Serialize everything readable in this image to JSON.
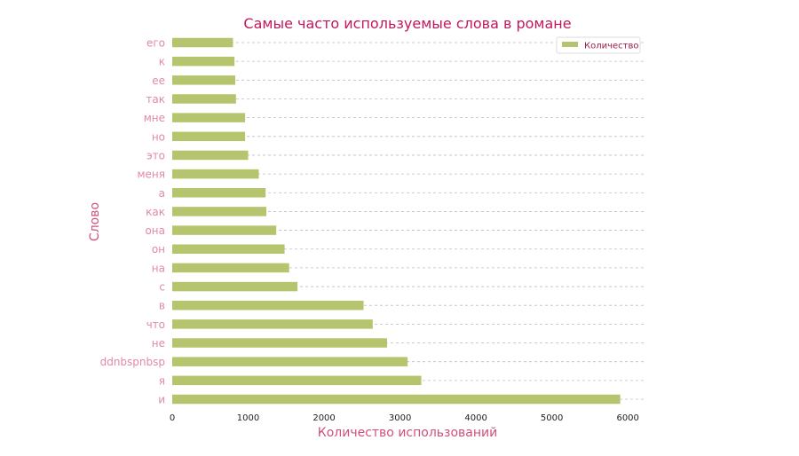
{
  "chart_data": {
    "type": "bar",
    "orientation": "horizontal",
    "title": "Самые часто используемые слова в романе",
    "xlabel": "Количество использований",
    "ylabel": "Слово",
    "categories": [
      "и",
      "я",
      "ddnbspnbsp",
      "не",
      "что",
      "в",
      "с",
      "на",
      "он",
      "она",
      "как",
      "а",
      "меня",
      "это",
      "но",
      "мне",
      "так",
      "ее",
      "к",
      "его"
    ],
    "series": [
      {
        "name": "Количество",
        "values": [
          5900,
          3280,
          3100,
          2830,
          2640,
          2520,
          1650,
          1540,
          1480,
          1370,
          1240,
          1230,
          1140,
          1000,
          960,
          960,
          840,
          830,
          820,
          800
        ],
        "color": "#b5c56e"
      }
    ],
    "xlim": [
      0,
      6220
    ],
    "xticks": [
      0,
      1000,
      2000,
      3000,
      4000,
      5000,
      6000
    ],
    "grid": "horizontal dashed",
    "legend": "top-right",
    "colors": {
      "title": "#c2185b",
      "axis_label": "#d0507a",
      "tick_label": "#e08aa6",
      "legend_text": "#9c1c4a",
      "grid": "#bdbdbd"
    }
  }
}
